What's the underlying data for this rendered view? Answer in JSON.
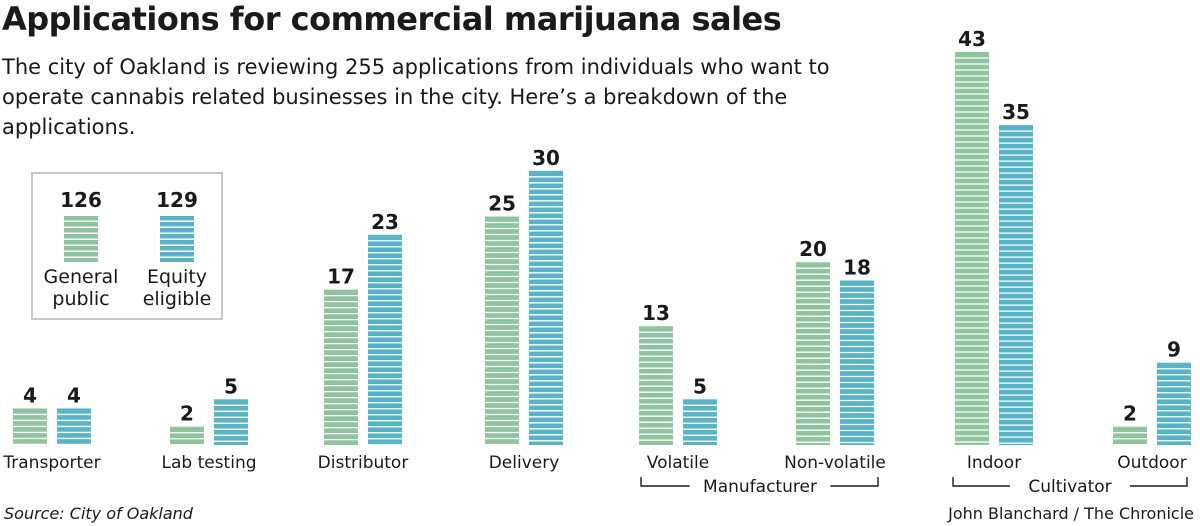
{
  "title": "Applications for commercial marijuana sales",
  "subtitle": "The city of Oakland is reviewing 255 applications from individuals who want to operate cannabis related businesses in the city. Here’s a breakdown of the applications.",
  "legend": {
    "general": {
      "value": "126",
      "label": [
        "General",
        "public"
      ]
    },
    "equity": {
      "value": "129",
      "label": [
        "Equity",
        "eligible"
      ]
    }
  },
  "colors": {
    "general": "#8fc49f",
    "equity": "#5ab4c8"
  },
  "source": "Source: City of Oakland",
  "credit": "John Blanchard / The Chronicle",
  "chart_data": {
    "type": "bar",
    "categories": [
      "Transporter",
      "Lab testing",
      "Distributor",
      "Delivery",
      "Volatile",
      "Non-volatile",
      "Indoor",
      "Outdoor"
    ],
    "series": [
      {
        "name": "General public",
        "values": [
          4,
          2,
          17,
          25,
          13,
          20,
          43,
          2
        ]
      },
      {
        "name": "Equity eligible",
        "values": [
          4,
          5,
          23,
          30,
          5,
          18,
          35,
          9
        ]
      }
    ],
    "groups": [
      {
        "label": "Manufacturer",
        "categories": [
          "Volatile",
          "Non-volatile"
        ]
      },
      {
        "label": "Cultivator",
        "categories": [
          "Indoor",
          "Outdoor"
        ]
      }
    ],
    "ylim": [
      0,
      43
    ],
    "grid": false
  }
}
